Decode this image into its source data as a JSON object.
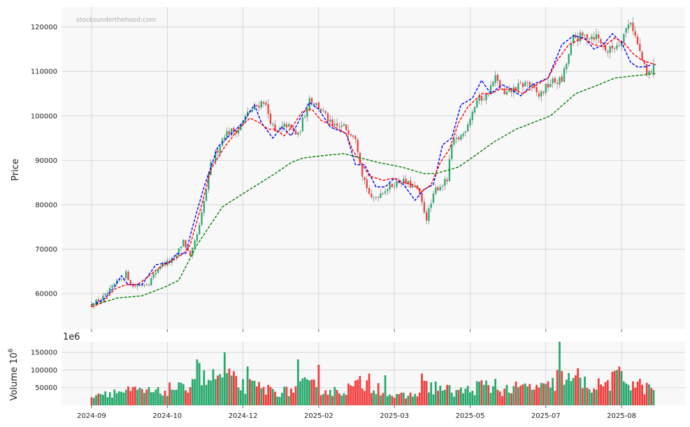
{
  "watermark": "stocksunderthehood.com",
  "colors": {
    "up": "#26a96c",
    "down": "#f23c3c",
    "ma_short": "#0000ff",
    "ma_mid": "#ff0000",
    "ma_long": "#008000",
    "panel_bg": "#f8f8f8",
    "grid": "#d0d0d0"
  },
  "chart_data": [
    {
      "type": "candlestick",
      "ylabel": "Price",
      "ylim": [
        52000,
        124500
      ],
      "yticks": [
        60000,
        70000,
        80000,
        90000,
        100000,
        110000,
        120000
      ],
      "ytick_labels": [
        "60000",
        "70000",
        "80000",
        "90000",
        "100000",
        "110000",
        "120000"
      ],
      "grid": true,
      "num_bars": 246,
      "price_anchors": [
        [
          0,
          57500
        ],
        [
          6,
          59500
        ],
        [
          10,
          62000
        ],
        [
          15,
          64500
        ],
        [
          18,
          61500
        ],
        [
          25,
          62500
        ],
        [
          30,
          66500
        ],
        [
          36,
          67500
        ],
        [
          40,
          72000
        ],
        [
          43,
          68000
        ],
        [
          47,
          75000
        ],
        [
          52,
          89000
        ],
        [
          58,
          96000
        ],
        [
          64,
          97000
        ],
        [
          68,
          100500
        ],
        [
          75,
          103500
        ],
        [
          80,
          96000
        ],
        [
          85,
          98000
        ],
        [
          90,
          95500
        ],
        [
          95,
          104000
        ],
        [
          100,
          101500
        ],
        [
          105,
          97500
        ],
        [
          110,
          97500
        ],
        [
          115,
          95500
        ],
        [
          118,
          87000
        ],
        [
          122,
          81000
        ],
        [
          128,
          83500
        ],
        [
          135,
          85500
        ],
        [
          142,
          83500
        ],
        [
          146,
          77000
        ],
        [
          150,
          83500
        ],
        [
          155,
          85500
        ],
        [
          157,
          93500
        ],
        [
          162,
          96000
        ],
        [
          168,
          103500
        ],
        [
          172,
          104500
        ],
        [
          176,
          108500
        ],
        [
          180,
          104500
        ],
        [
          184,
          106000
        ],
        [
          190,
          107500
        ],
        [
          195,
          104500
        ],
        [
          200,
          107500
        ],
        [
          205,
          108000
        ],
        [
          210,
          117500
        ],
        [
          216,
          118000
        ],
        [
          220,
          118000
        ],
        [
          225,
          114500
        ],
        [
          230,
          116500
        ],
        [
          235,
          121500
        ],
        [
          238,
          116000
        ],
        [
          242,
          109000
        ],
        [
          246,
          111500
        ]
      ],
      "moving_averages": [
        {
          "name": "",
          "color": "#0000ff",
          "points": [
            [
              0,
              57500
            ],
            [
              5,
              58500
            ],
            [
              10,
              61500
            ],
            [
              13,
              64000
            ],
            [
              16,
              62000
            ],
            [
              22,
              62000
            ],
            [
              28,
              66500
            ],
            [
              34,
              67000
            ],
            [
              37,
              69000
            ],
            [
              41,
              69000
            ],
            [
              44,
              75000
            ],
            [
              49,
              84000
            ],
            [
              55,
              93000
            ],
            [
              60,
              95500
            ],
            [
              66,
              98500
            ],
            [
              71,
              102500
            ],
            [
              74,
              98500
            ],
            [
              79,
              95000
            ],
            [
              83,
              97500
            ],
            [
              87,
              95500
            ],
            [
              91,
              99500
            ],
            [
              95,
              103000
            ],
            [
              99,
              101500
            ],
            [
              104,
              97500
            ],
            [
              111,
              96000
            ],
            [
              115,
              89000
            ],
            [
              119,
              89000
            ],
            [
              124,
              84000
            ],
            [
              128,
              84000
            ],
            [
              132,
              86000
            ],
            [
              136,
              84500
            ],
            [
              141,
              81000
            ],
            [
              145,
              83500
            ],
            [
              149,
              84500
            ],
            [
              153,
              93500
            ],
            [
              157,
              95000
            ],
            [
              161,
              102500
            ],
            [
              166,
              104000
            ],
            [
              170,
              108000
            ],
            [
              174,
              105000
            ],
            [
              179,
              107000
            ],
            [
              183,
              106000
            ],
            [
              187,
              104500
            ],
            [
              192,
              107000
            ],
            [
              199,
              108500
            ],
            [
              205,
              116000
            ],
            [
              210,
              118000
            ],
            [
              215,
              117500
            ],
            [
              219,
              115000
            ],
            [
              223,
              116000
            ],
            [
              227,
              118500
            ],
            [
              231,
              116500
            ],
            [
              235,
              112000
            ],
            [
              238,
              111000
            ],
            [
              241,
              111000
            ],
            [
              244,
              111500
            ]
          ]
        },
        {
          "name": "",
          "color": "#ff0000",
          "points": [
            [
              0,
              57000
            ],
            [
              5,
              58000
            ],
            [
              10,
              61000
            ],
            [
              15,
              62000
            ],
            [
              20,
              62000
            ],
            [
              30,
              66000
            ],
            [
              37,
              68000
            ],
            [
              40,
              69000
            ],
            [
              43,
              71000
            ],
            [
              48,
              80000
            ],
            [
              52,
              88000
            ],
            [
              58,
              93000
            ],
            [
              64,
              97000
            ],
            [
              69,
              99500
            ],
            [
              73,
              98500
            ],
            [
              77,
              97000
            ],
            [
              80,
              97000
            ],
            [
              84,
              95500
            ],
            [
              88,
              98000
            ],
            [
              92,
              101000
            ],
            [
              96,
              101500
            ],
            [
              100,
              99000
            ],
            [
              106,
              97500
            ],
            [
              111,
              96000
            ],
            [
              114,
              92000
            ],
            [
              117,
              90000
            ],
            [
              121,
              86500
            ],
            [
              127,
              85500
            ],
            [
              132,
              86000
            ],
            [
              136,
              85000
            ],
            [
              140,
              84500
            ],
            [
              144,
              83000
            ],
            [
              148,
              84500
            ],
            [
              152,
              89500
            ],
            [
              156,
              92500
            ],
            [
              160,
              98500
            ],
            [
              164,
              102000
            ],
            [
              170,
              105000
            ],
            [
              174,
              105000
            ],
            [
              178,
              106000
            ],
            [
              184,
              106000
            ],
            [
              188,
              105000
            ],
            [
              194,
              107000
            ],
            [
              199,
              108500
            ],
            [
              203,
              112500
            ],
            [
              208,
              116000
            ],
            [
              214,
              117500
            ],
            [
              219,
              116000
            ],
            [
              223,
              115500
            ],
            [
              228,
              117500
            ],
            [
              232,
              116500
            ],
            [
              236,
              114000
            ],
            [
              240,
              112500
            ],
            [
              246,
              111500
            ]
          ]
        },
        {
          "name": "",
          "color": "#008000",
          "points": [
            [
              0,
              57500
            ],
            [
              5,
              58000
            ],
            [
              11,
              59000
            ],
            [
              22,
              59500
            ],
            [
              32,
              61500
            ],
            [
              38,
              63000
            ],
            [
              46,
              71000
            ],
            [
              57,
              79500
            ],
            [
              66,
              82500
            ],
            [
              80,
              87000
            ],
            [
              87,
              89500
            ],
            [
              92,
              90500
            ],
            [
              100,
              91000
            ],
            [
              110,
              91500
            ],
            [
              125,
              89500
            ],
            [
              135,
              88500
            ],
            [
              145,
              87000
            ],
            [
              150,
              87000
            ],
            [
              160,
              88500
            ],
            [
              167,
              91000
            ],
            [
              175,
              94000
            ],
            [
              185,
              97000
            ],
            [
              200,
              100000
            ],
            [
              211,
              105000
            ],
            [
              221,
              107000
            ],
            [
              228,
              108500
            ],
            [
              236,
              109000
            ],
            [
              246,
              109500
            ]
          ]
        }
      ]
    },
    {
      "type": "bar",
      "ylabel": "Volume  10^6",
      "offset_label": "1e6",
      "ylim": [
        0,
        180000
      ],
      "yticks": [
        50000,
        100000,
        150000
      ],
      "ytick_labels": [
        "50000",
        "100000",
        "150000"
      ],
      "grid": true,
      "volume_anchors": [
        [
          0,
          35000
        ],
        [
          10,
          40000
        ],
        [
          20,
          42000
        ],
        [
          30,
          38000
        ],
        [
          36,
          55000
        ],
        [
          40,
          45000
        ],
        [
          45,
          90000
        ],
        [
          50,
          75000
        ],
        [
          55,
          85000
        ],
        [
          60,
          80000
        ],
        [
          65,
          60000
        ],
        [
          70,
          55000
        ],
        [
          78,
          45000
        ],
        [
          85,
          40000
        ],
        [
          92,
          60000
        ],
        [
          98,
          55000
        ],
        [
          105,
          40000
        ],
        [
          112,
          50000
        ],
        [
          118,
          65000
        ],
        [
          125,
          55000
        ],
        [
          132,
          25000
        ],
        [
          140,
          30000
        ],
        [
          145,
          55000
        ],
        [
          150,
          55000
        ],
        [
          158,
          40000
        ],
        [
          165,
          45000
        ],
        [
          170,
          60000
        ],
        [
          178,
          45000
        ],
        [
          185,
          50000
        ],
        [
          192,
          55000
        ],
        [
          198,
          50000
        ],
        [
          205,
          80000
        ],
        [
          210,
          70000
        ],
        [
          215,
          65000
        ],
        [
          220,
          55000
        ],
        [
          226,
          70000
        ],
        [
          230,
          80000
        ],
        [
          236,
          70000
        ],
        [
          240,
          55000
        ],
        [
          246,
          45000
        ]
      ],
      "volume_spikes": [
        [
          46,
          130000
        ],
        [
          47,
          120000
        ],
        [
          58,
          150000
        ],
        [
          68,
          110000
        ],
        [
          90,
          130000
        ],
        [
          99,
          115000
        ],
        [
          121,
          90000
        ],
        [
          128,
          85000
        ],
        [
          144,
          90000
        ],
        [
          176,
          75000
        ],
        [
          203,
          100000
        ],
        [
          204,
          180000
        ],
        [
          212,
          105000
        ],
        [
          230,
          110000
        ]
      ]
    }
  ],
  "x_axis": {
    "ticks": [
      {
        "label": "2024-09",
        "index": 0
      },
      {
        "label": "2024-10",
        "index": 33
      },
      {
        "label": "2024-12",
        "index": 66
      },
      {
        "label": "2025-02",
        "index": 99
      },
      {
        "label": "2025-03",
        "index": 132
      },
      {
        "label": "2025-05",
        "index": 165
      },
      {
        "label": "2025-07",
        "index": 198
      },
      {
        "label": "2025-08",
        "index": 231
      }
    ]
  }
}
